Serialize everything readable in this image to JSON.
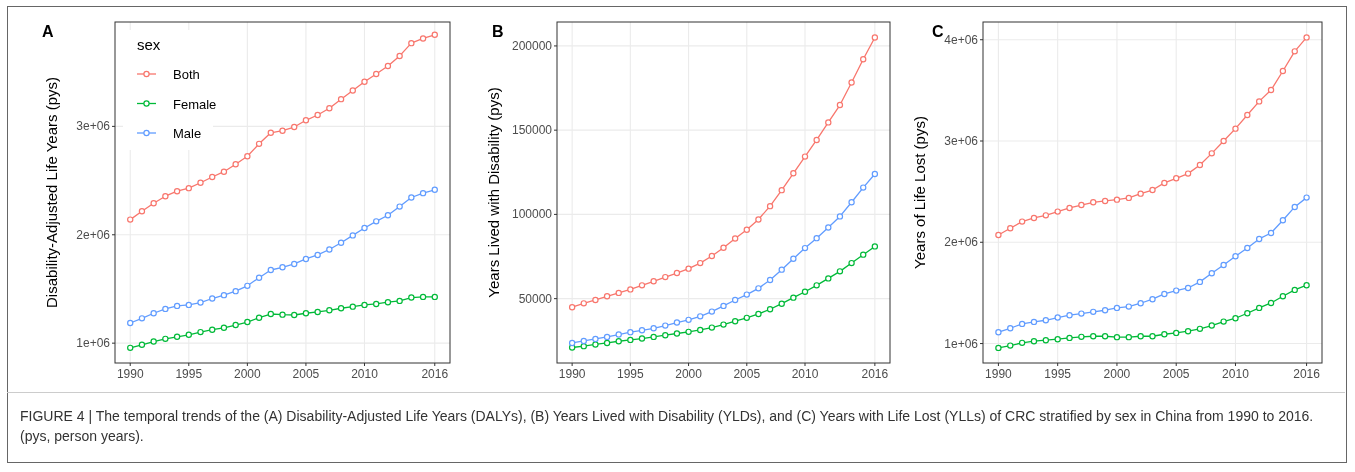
{
  "chart_data": [
    {
      "type": "line",
      "title": "A",
      "ylabel": "Disability-Adjusted Life Years (pys)",
      "legend_title": "sex",
      "legend": "top left",
      "marker": "circle",
      "grid": true,
      "x": [
        1990,
        1991,
        1992,
        1993,
        1994,
        1995,
        1996,
        1997,
        1998,
        1999,
        2000,
        2001,
        2002,
        2003,
        2004,
        2005,
        2006,
        2007,
        2008,
        2009,
        2010,
        2011,
        2012,
        2013,
        2014,
        2015,
        2016
      ],
      "xlim": [
        1988.7,
        2017.3
      ],
      "xticks": [
        1990,
        1995,
        2000,
        2005,
        2010,
        2016
      ],
      "ylim": [
        817000,
        3963000
      ],
      "yticks": [
        {
          "value": 1000000,
          "label": "1e+06"
        },
        {
          "value": 2000000,
          "label": "2e+06"
        },
        {
          "value": 3000000,
          "label": "3e+06"
        }
      ],
      "series": [
        {
          "name": "Both",
          "color": "#f8766d",
          "values": [
            2140000,
            2217000,
            2291000,
            2356000,
            2402000,
            2430000,
            2480000,
            2533000,
            2582000,
            2650000,
            2724000,
            2839000,
            2941000,
            2960000,
            2994000,
            3056000,
            3105000,
            3167000,
            3251000,
            3331000,
            3412000,
            3483000,
            3557000,
            3650000,
            3768000,
            3811000,
            3845000
          ]
        },
        {
          "name": "Female",
          "color": "#00ba38",
          "values": [
            957000,
            985000,
            1015000,
            1040000,
            1059000,
            1077000,
            1102000,
            1124000,
            1142000,
            1167000,
            1195000,
            1235000,
            1269000,
            1263000,
            1260000,
            1276000,
            1288000,
            1303000,
            1322000,
            1337000,
            1353000,
            1362000,
            1378000,
            1390000,
            1421000,
            1427000,
            1427000
          ]
        },
        {
          "name": "Male",
          "color": "#619cff",
          "values": [
            1186000,
            1229000,
            1276000,
            1316000,
            1344000,
            1353000,
            1375000,
            1412000,
            1443000,
            1480000,
            1529000,
            1604000,
            1675000,
            1700000,
            1731000,
            1777000,
            1814000,
            1864000,
            1926000,
            1994000,
            2062000,
            2124000,
            2180000,
            2260000,
            2344000,
            2384000,
            2415000
          ]
        }
      ],
      "annotations": [
        "FIGURE 4 | The temporal trends of the (A) Disability-Adjusted Life Years (DALYs), (B) Years Lived with Disability (YLDs), and (C) Years with Life Lost (YLLs) of CRC stratified by sex in China from 1990 to 2016. (pys, person years)."
      ]
    },
    {
      "type": "line",
      "title": "B",
      "ylabel": "Years Lived with Disability (pys)",
      "marker": "circle",
      "grid": true,
      "x": [
        1990,
        1991,
        1992,
        1993,
        1994,
        1995,
        1996,
        1997,
        1998,
        1999,
        2000,
        2001,
        2002,
        2003,
        2004,
        2005,
        2006,
        2007,
        2008,
        2009,
        2010,
        2011,
        2012,
        2013,
        2014,
        2015,
        2016
      ],
      "xlim": [
        1988.7,
        2017.3
      ],
      "xticks": [
        1990,
        1995,
        2000,
        2005,
        2010,
        2016
      ],
      "ylim": [
        11800,
        214200
      ],
      "yticks": [
        50000,
        100000,
        150000,
        200000
      ],
      "series": [
        {
          "color": "#f8766d",
          "values": [
            44900,
            47200,
            49200,
            51400,
            53400,
            55500,
            57900,
            60300,
            62800,
            65200,
            67800,
            71100,
            75300,
            80200,
            85700,
            90900,
            97000,
            104900,
            114400,
            124400,
            134300,
            144200,
            154600,
            164900,
            178300,
            192100,
            205000
          ]
        },
        {
          "color": "#00ba38",
          "values": [
            21000,
            21800,
            22800,
            23700,
            24700,
            25500,
            26300,
            27300,
            28300,
            29300,
            30300,
            31400,
            32800,
            34600,
            36600,
            38600,
            40900,
            43700,
            47000,
            50600,
            54100,
            57900,
            62000,
            66200,
            71100,
            76100,
            81000
          ]
        },
        {
          "color": "#619cff",
          "values": [
            23700,
            24900,
            26100,
            27300,
            28700,
            30100,
            31200,
            32400,
            34000,
            35800,
            37400,
            39500,
            42300,
            45700,
            49200,
            52400,
            56100,
            61100,
            67200,
            73700,
            80000,
            85900,
            92200,
            98800,
            107200,
            115900,
            124000
          ]
        }
      ]
    },
    {
      "type": "line",
      "title": "C",
      "ylabel": "Years of Life Lost (pys)",
      "marker": "circle",
      "grid": true,
      "x": [
        1990,
        1991,
        1992,
        1993,
        1994,
        1995,
        1996,
        1997,
        1998,
        1999,
        2000,
        2001,
        2002,
        2003,
        2004,
        2005,
        2006,
        2007,
        2008,
        2009,
        2010,
        2011,
        2012,
        2013,
        2014,
        2015,
        2016
      ],
      "xlim": [
        1988.7,
        2017.3
      ],
      "xticks": [
        1990,
        1995,
        2000,
        2005,
        2010,
        2016
      ],
      "ylim": [
        808000,
        4175000
      ],
      "yticks": [
        {
          "value": 1000000,
          "label": "1e+06"
        },
        {
          "value": 2000000,
          "label": "2e+06"
        },
        {
          "value": 3000000,
          "label": "3e+06"
        },
        {
          "value": 4000000,
          "label": "4e+06"
        }
      ],
      "series": [
        {
          "color": "#f8766d",
          "values": [
            2072000,
            2138000,
            2204000,
            2240000,
            2266000,
            2303000,
            2339000,
            2368000,
            2395000,
            2408000,
            2421000,
            2438000,
            2480000,
            2516000,
            2586000,
            2632000,
            2678000,
            2763000,
            2878000,
            3000000,
            3122000,
            3257000,
            3391000,
            3503000,
            3691000,
            3885000,
            4023000
          ]
        },
        {
          "color": "#00ba38",
          "values": [
            957000,
            980000,
            1007000,
            1023000,
            1033000,
            1043000,
            1056000,
            1066000,
            1072000,
            1072000,
            1063000,
            1063000,
            1072000,
            1072000,
            1092000,
            1105000,
            1122000,
            1145000,
            1178000,
            1217000,
            1250000,
            1299000,
            1352000,
            1401000,
            1467000,
            1530000,
            1576000
          ]
        },
        {
          "color": "#619cff",
          "values": [
            1112000,
            1151000,
            1194000,
            1214000,
            1230000,
            1257000,
            1280000,
            1296000,
            1313000,
            1329000,
            1352000,
            1365000,
            1398000,
            1438000,
            1490000,
            1523000,
            1549000,
            1609000,
            1694000,
            1776000,
            1862000,
            1944000,
            2033000,
            2092000,
            2217000,
            2349000,
            2441000
          ]
        }
      ]
    }
  ]
}
